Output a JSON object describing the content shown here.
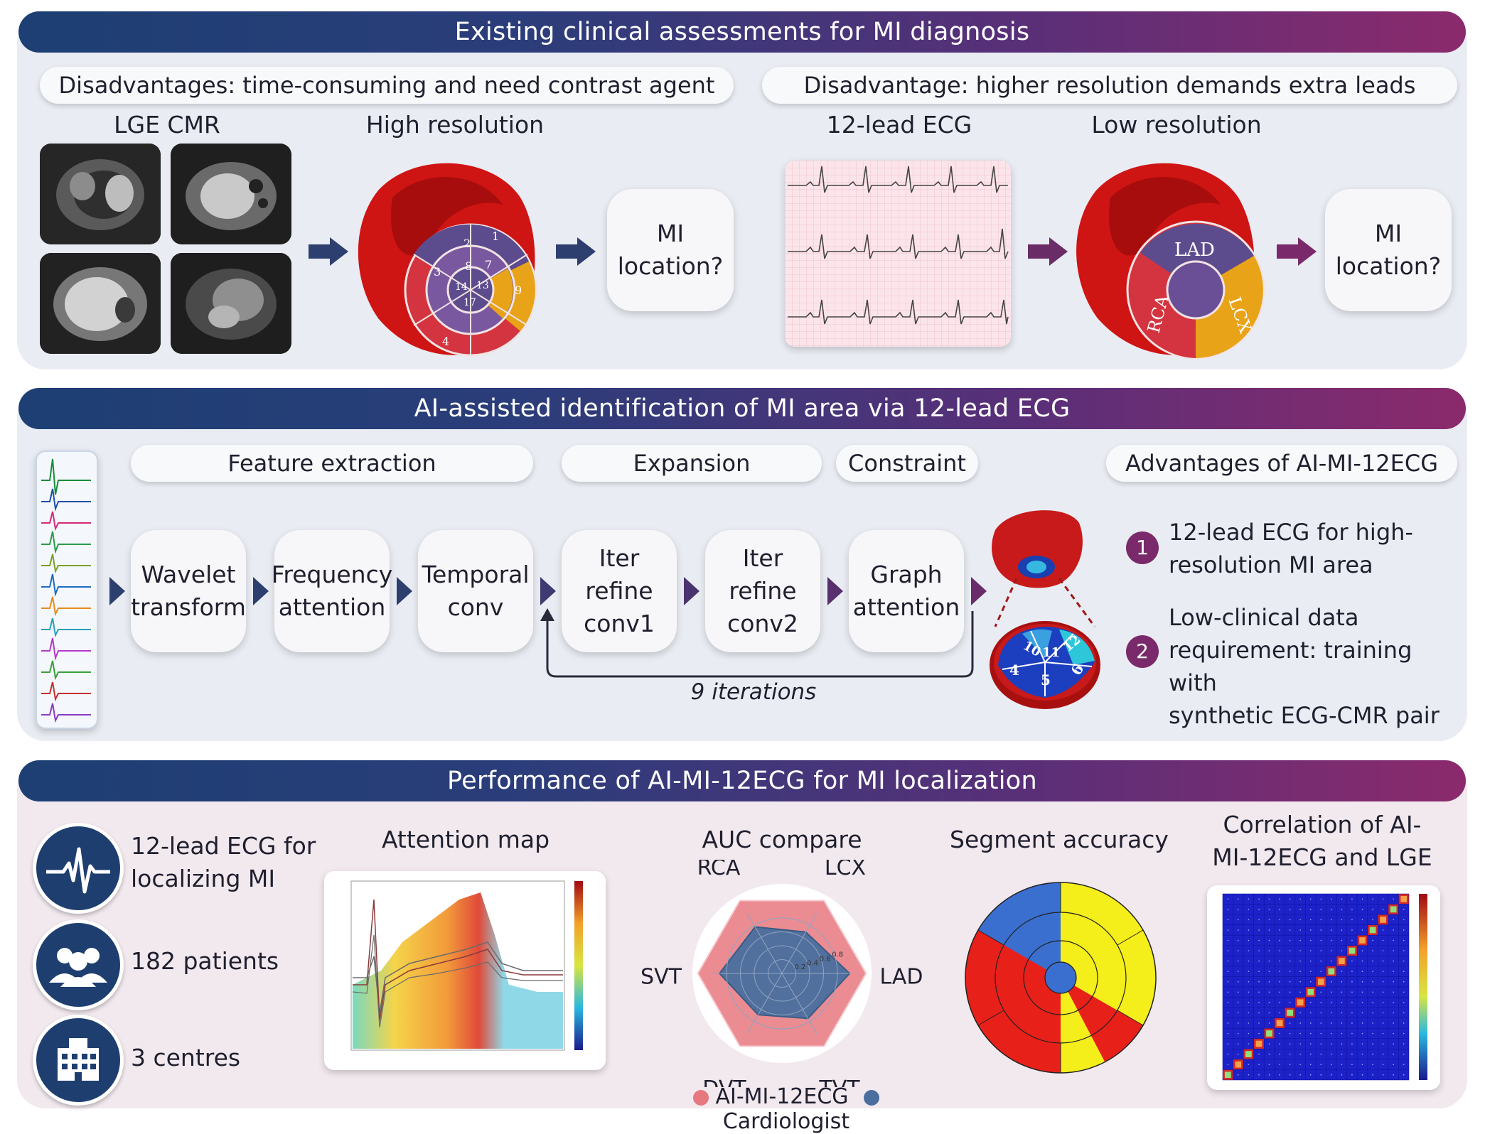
{
  "sections": {
    "s1": {
      "title": "Existing clinical assessments for MI diagnosis",
      "left_disadvantage": "Disadvantages: time-consuming and need contrast agent",
      "right_disadvantage": "Disadvantage: higher resolution demands extra leads",
      "lge_label": "LGE CMR",
      "high_res_label": "High resolution",
      "ecg_label": "12-lead ECG",
      "low_res_label": "Low resolution",
      "mi_location_1": "MI location?",
      "mi_location_2": "MI location?",
      "segment_numbers": [
        "1",
        "2",
        "3",
        "4",
        "7",
        "8",
        "9",
        "13",
        "14",
        "17"
      ],
      "territories": [
        "LAD",
        "RCA",
        "LCX"
      ]
    },
    "s2": {
      "title": "AI-assisted identification of MI area via 12-lead ECG",
      "stage_feature": "Feature extraction",
      "stage_expansion": "Expansion",
      "stage_constraint": "Constraint",
      "stage_advantages": "Advantages of AI-MI-12ECG",
      "steps": [
        {
          "line1": "Wavelet",
          "line2": "transform"
        },
        {
          "line1": "Frequency",
          "line2": "attention"
        },
        {
          "line1": "Temporal",
          "line2": "conv"
        },
        {
          "line1": "Iter refine",
          "line2": "conv1"
        },
        {
          "line1": "Iter refine",
          "line2": "conv2"
        },
        {
          "line1": "Graph",
          "line2": "attention"
        }
      ],
      "iterations": "9 iterations",
      "bullseye_numbers": [
        "10",
        "11",
        "12",
        "4",
        "5",
        "6"
      ],
      "advantages": [
        {
          "num": "1",
          "line1": "12-lead ECG for high-",
          "line2": "resolution MI area"
        },
        {
          "num": "2",
          "line1": "Low-clinical data",
          "line2": "requirement: training with",
          "line3": "synthetic ECG-CMR pair"
        }
      ]
    },
    "s3": {
      "title": "Performance of AI-MI-12ECG for MI localization",
      "stats": [
        {
          "icon": "ecg-heartbeat-icon",
          "line1": "12-lead ECG for",
          "line2": "localizing MI"
        },
        {
          "icon": "patients-group-icon",
          "line1": "182 patients"
        },
        {
          "icon": "hospital-building-icon",
          "line1": "3 centres"
        }
      ],
      "attention_title": "Attention map",
      "auc_title": "AUC compare",
      "segment_title": "Segment accuracy",
      "correlation_title_1": "Correlation of AI-",
      "correlation_title_2": "MI-12ECG and LGE"
    }
  },
  "colors": {
    "accent_navy": "#1e3e70",
    "accent_purple": "#7a2a6a",
    "ai_series": "#e8787f",
    "cardiologist_series": "#4a6f9e"
  },
  "chart_data": [
    {
      "type": "radar",
      "title": "AUC compare",
      "categories": [
        "RCA",
        "LCX",
        "LAD",
        "TVT",
        "DVT",
        "SVT"
      ],
      "rlim": [
        0,
        1
      ],
      "ticks": [
        0.2,
        0.4,
        0.6,
        0.8
      ],
      "series": [
        {
          "name": "AI-MI-12ECG",
          "values": [
            0.97,
            0.97,
            0.97,
            0.97,
            0.97,
            0.97
          ]
        },
        {
          "name": "Cardiologist",
          "values": [
            0.62,
            0.55,
            0.78,
            0.6,
            0.55,
            0.72
          ]
        }
      ]
    },
    {
      "type": "heatmap",
      "title": "Correlation of AI-MI-12ECG and LGE",
      "size": 18,
      "diagonal_value": 0.95,
      "off_diagonal_value": 0.05
    }
  ]
}
